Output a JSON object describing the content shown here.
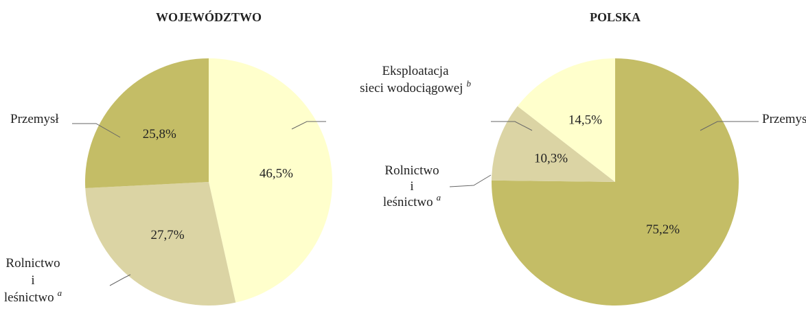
{
  "chart_data": [
    {
      "type": "pie",
      "title": "WOJEWÓDZTWO",
      "categories": [
        null,
        [
          "Rolnictwo",
          "i",
          "leśnictwo"
        ],
        [
          "Przemysł"
        ]
      ],
      "footnotes": [
        null,
        "a",
        null
      ],
      "values": [
        46.5,
        27.7,
        25.8
      ],
      "value_labels": [
        "46,5%",
        "27,7%",
        "25,8%"
      ],
      "colors": [
        "#ffffcc",
        "#dbd4a4",
        "#c4bd66"
      ]
    },
    {
      "type": "pie",
      "title": "POLSKA",
      "categories": [
        [
          "Przemysł"
        ],
        [
          "Rolnictwo",
          "i",
          "leśnictwo"
        ],
        [
          "Eksploatacja",
          "sieci wodociągowej"
        ]
      ],
      "footnotes": [
        null,
        "a",
        "b"
      ],
      "values": [
        75.2,
        10.3,
        14.5
      ],
      "value_labels": [
        "75,2%",
        "10,3%",
        "14,5%"
      ],
      "colors": [
        "#c4bd66",
        "#dbd4a4",
        "#ffffcc"
      ]
    }
  ]
}
